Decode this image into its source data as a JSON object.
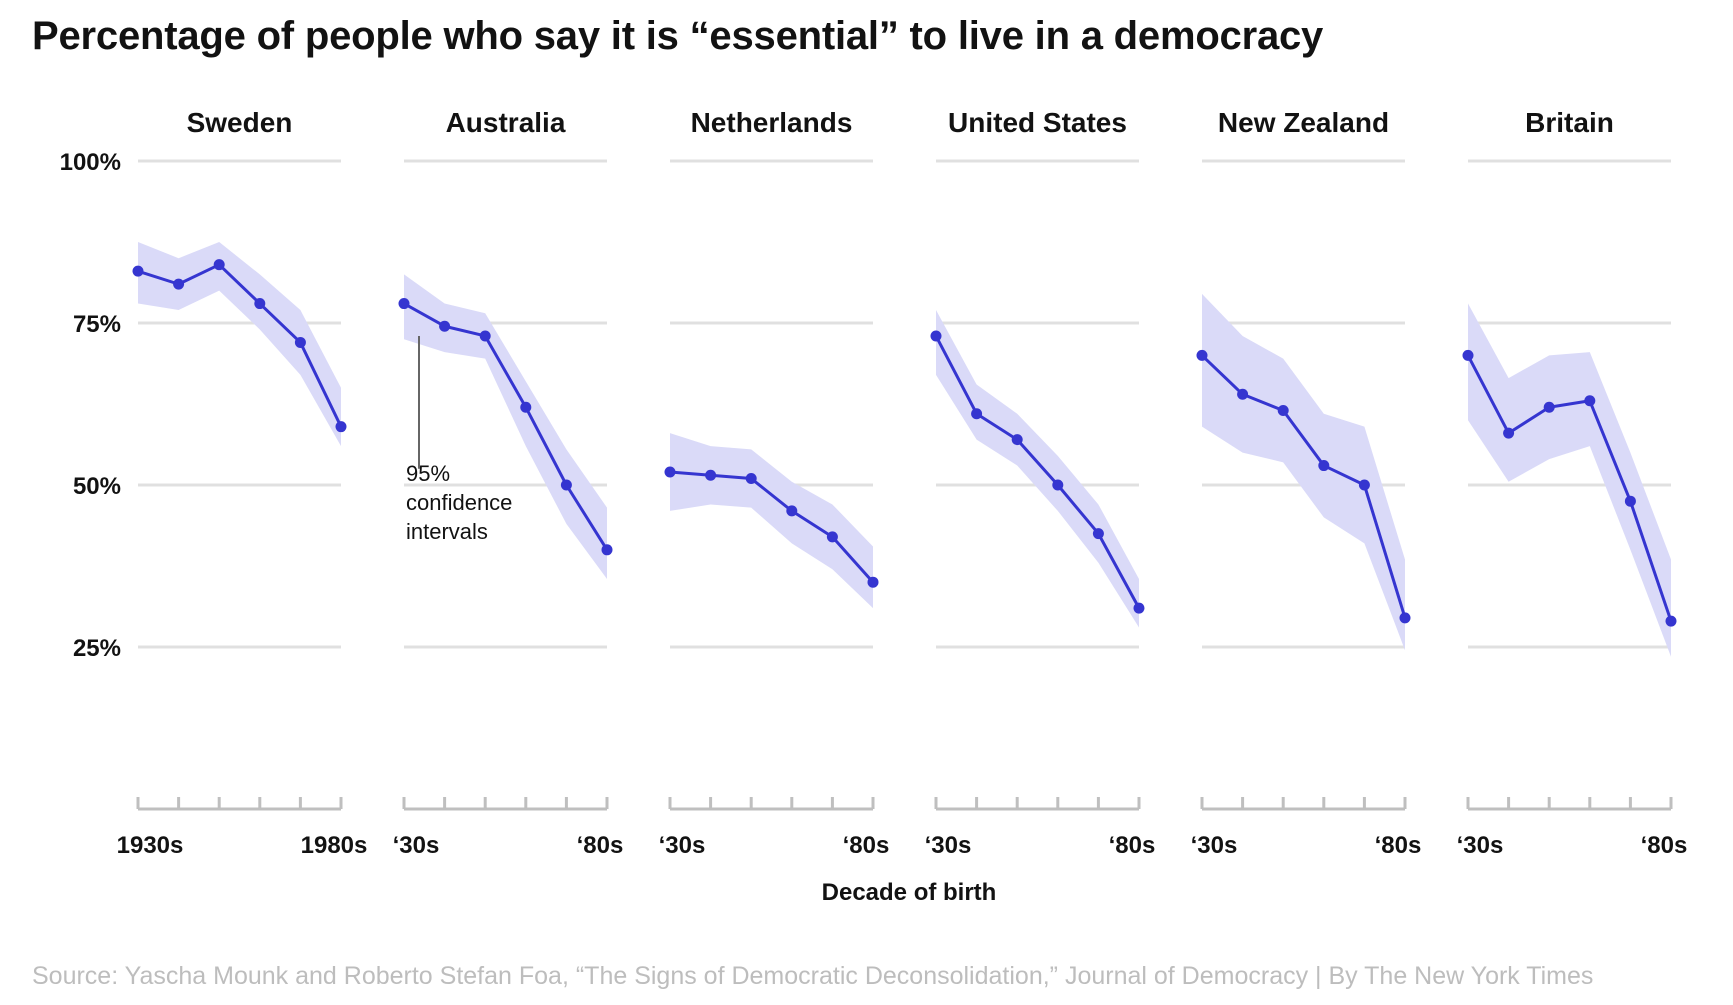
{
  "title": "Percentage of people who say it is “essential” to live in a democracy",
  "source": "Source: Yascha Mounk and Roberto Stefan Foa, “The Signs of Democratic Deconsolidation,” Journal of Democracy | By The New York Times",
  "annotation": [
    "95%",
    "confidence",
    "intervals"
  ],
  "colors": {
    "line": "#3535d0",
    "band": "#dadaf8",
    "grid": "#e0e0e0",
    "axis": "#bfbfbf",
    "text": "#121212",
    "source": "#bdbdbd"
  },
  "chart_data": {
    "type": "line",
    "panels": [
      "Sweden",
      "Australia",
      "Netherlands",
      "United States",
      "New Zealand",
      "Britain"
    ],
    "x": [
      "1930s",
      "1940s",
      "1950s",
      "1960s",
      "1970s",
      "1980s"
    ],
    "x_tick_labels": [
      [
        "1930s",
        "1980s"
      ],
      [
        "‘30s",
        "‘80s"
      ],
      [
        "‘30s",
        "‘80s"
      ],
      [
        "‘30s",
        "‘80s"
      ],
      [
        "‘30s",
        "‘80s"
      ],
      [
        "‘30s",
        "‘80s"
      ]
    ],
    "y_ticks": [
      25,
      50,
      75,
      100
    ],
    "y_tick_labels": [
      "25%",
      "50%",
      "75%",
      "100%"
    ],
    "ylim": [
      0,
      100
    ],
    "xlabel": "Decade of birth",
    "ylabel": "",
    "grid": true,
    "series": [
      {
        "panel": "Sweden",
        "values": [
          83,
          81,
          84,
          78,
          72,
          59
        ],
        "lower": [
          78,
          77,
          80,
          74,
          67,
          56
        ],
        "upper": [
          87.5,
          85,
          87.5,
          82.5,
          77,
          65
        ]
      },
      {
        "panel": "Australia",
        "values": [
          78,
          74.5,
          73,
          62,
          50,
          40
        ],
        "lower": [
          72.5,
          70.5,
          69.5,
          56,
          44,
          35.5
        ],
        "upper": [
          82.5,
          78,
          76.5,
          66,
          55.5,
          46.5
        ]
      },
      {
        "panel": "Netherlands",
        "values": [
          52,
          51.5,
          51,
          46,
          42,
          35
        ],
        "lower": [
          46,
          47,
          46.5,
          41,
          37,
          31
        ],
        "upper": [
          58,
          56,
          55.5,
          50.5,
          47,
          40.5
        ]
      },
      {
        "panel": "United States",
        "values": [
          73,
          61,
          57,
          50,
          42.5,
          31
        ],
        "lower": [
          67,
          57,
          53,
          46,
          38,
          28
        ],
        "upper": [
          77,
          65.5,
          61,
          54.5,
          47,
          35.5
        ]
      },
      {
        "panel": "New Zealand",
        "values": [
          70,
          64,
          61.5,
          53,
          50,
          29.5
        ],
        "lower": [
          59,
          55,
          53.5,
          45,
          41,
          24.5
        ],
        "upper": [
          79.5,
          73,
          69.5,
          61,
          59,
          38.5
        ]
      },
      {
        "panel": "Britain",
        "values": [
          70,
          58,
          62,
          63,
          47.5,
          29
        ],
        "lower": [
          60,
          50.5,
          54,
          56,
          40,
          23.5
        ],
        "upper": [
          78,
          66.5,
          70,
          70.5,
          55,
          38.5
        ]
      }
    ]
  }
}
